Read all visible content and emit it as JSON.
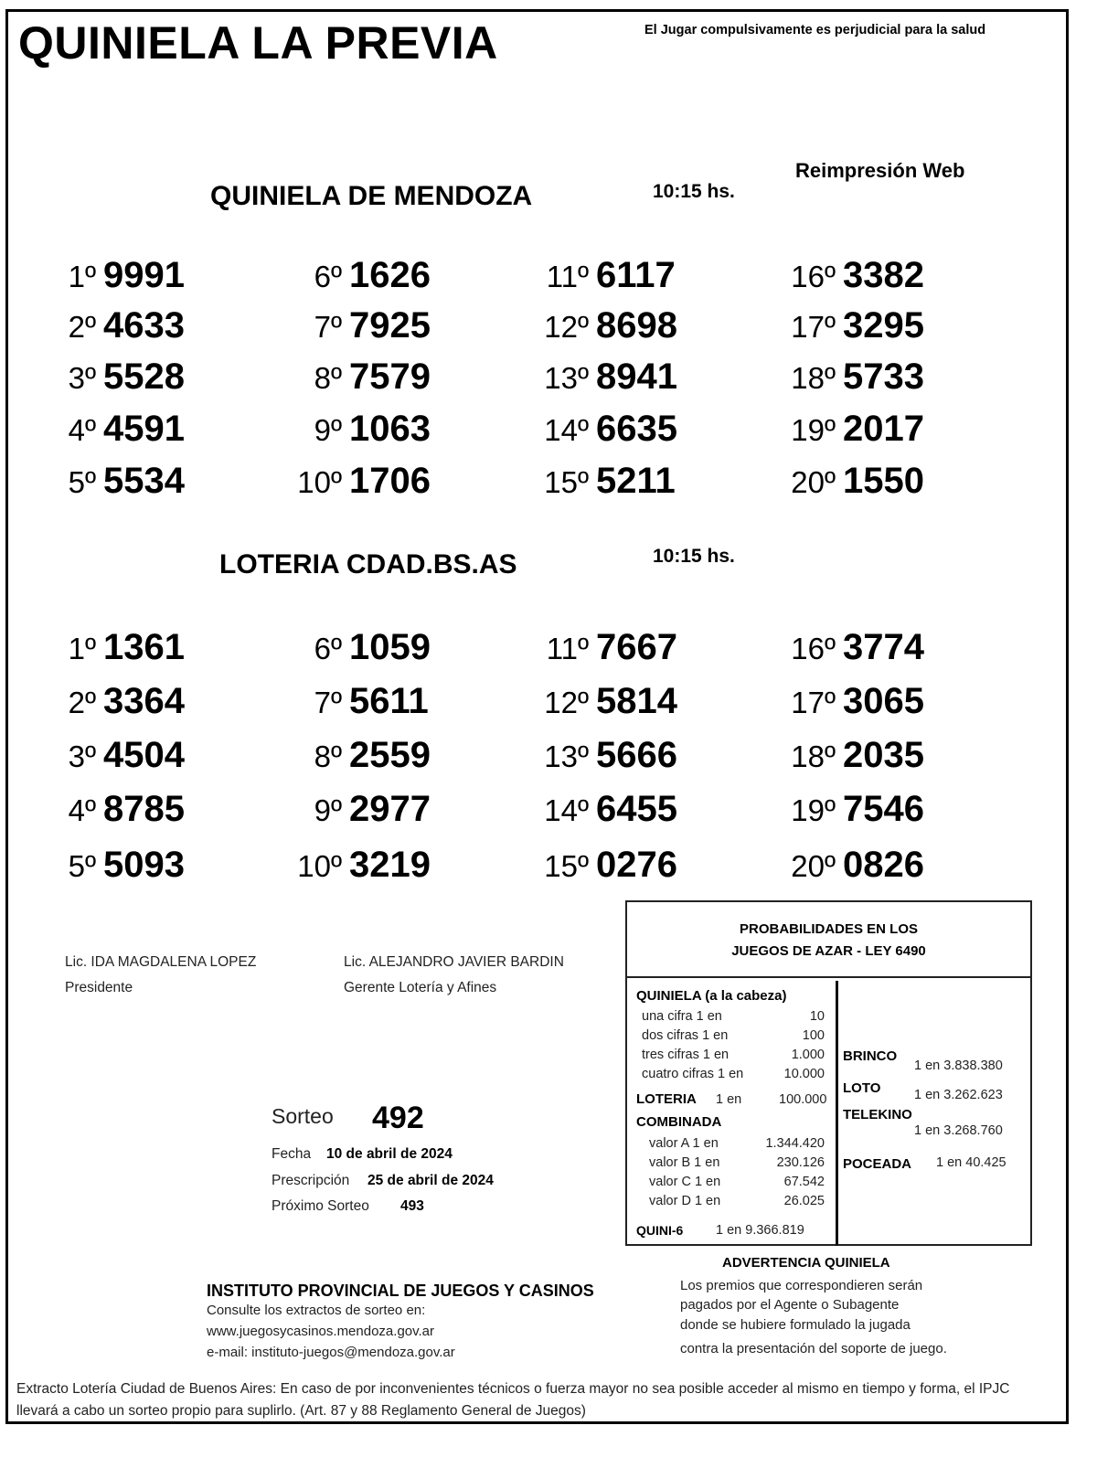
{
  "header": {
    "title": "QUINIELA LA PREVIA",
    "warning": "El Jugar compulsivamente es perjudicial para la salud",
    "reprint": "Reimpresión Web"
  },
  "sections": [
    {
      "name": "QUINIELA  DE MENDOZA",
      "time": "10:15 hs.",
      "results": [
        {
          "pos": "1º",
          "num": "9991"
        },
        {
          "pos": "2º",
          "num": "4633"
        },
        {
          "pos": "3º",
          "num": "5528"
        },
        {
          "pos": "4º",
          "num": "4591"
        },
        {
          "pos": "5º",
          "num": "5534"
        },
        {
          "pos": "6º",
          "num": "1626"
        },
        {
          "pos": "7º",
          "num": "7925"
        },
        {
          "pos": "8º",
          "num": "7579"
        },
        {
          "pos": "9º",
          "num": "1063"
        },
        {
          "pos": "10º",
          "num": "1706"
        },
        {
          "pos": "11º",
          "num": "6117"
        },
        {
          "pos": "12º",
          "num": "8698"
        },
        {
          "pos": "13º",
          "num": "8941"
        },
        {
          "pos": "14º",
          "num": "6635"
        },
        {
          "pos": "15º",
          "num": "5211"
        },
        {
          "pos": "16º",
          "num": "3382"
        },
        {
          "pos": "17º",
          "num": "3295"
        },
        {
          "pos": "18º",
          "num": "5733"
        },
        {
          "pos": "19º",
          "num": "2017"
        },
        {
          "pos": "20º",
          "num": "1550"
        }
      ]
    },
    {
      "name": "LOTERIA CDAD.BS.AS",
      "time": "10:15 hs.",
      "results": [
        {
          "pos": "1º",
          "num": "1361"
        },
        {
          "pos": "2º",
          "num": "3364"
        },
        {
          "pos": "3º",
          "num": "4504"
        },
        {
          "pos": "4º",
          "num": "8785"
        },
        {
          "pos": "5º",
          "num": "5093"
        },
        {
          "pos": "6º",
          "num": "1059"
        },
        {
          "pos": "7º",
          "num": "5611"
        },
        {
          "pos": "8º",
          "num": "2559"
        },
        {
          "pos": "9º",
          "num": "2977"
        },
        {
          "pos": "10º",
          "num": "3219"
        },
        {
          "pos": "11º",
          "num": "7667"
        },
        {
          "pos": "12º",
          "num": "5814"
        },
        {
          "pos": "13º",
          "num": "5666"
        },
        {
          "pos": "14º",
          "num": "6455"
        },
        {
          "pos": "15º",
          "num": "0276"
        },
        {
          "pos": "16º",
          "num": "3774"
        },
        {
          "pos": "17º",
          "num": "3065"
        },
        {
          "pos": "18º",
          "num": "2035"
        },
        {
          "pos": "19º",
          "num": "7546"
        },
        {
          "pos": "20º",
          "num": "0826"
        }
      ]
    }
  ],
  "signatures": [
    {
      "name": "Lic. IDA MAGDALENA LOPEZ",
      "role": "Presidente"
    },
    {
      "name": "Lic. ALEJANDRO JAVIER BARDIN",
      "role": "Gerente Lotería y Afines"
    }
  ],
  "draw_info": {
    "sorteo_label": "Sorteo",
    "sorteo": "492",
    "fecha_label": "Fecha",
    "fecha": "10 de abril de 2024",
    "prescripcion_label": "Prescripción",
    "prescripcion": "25 de abril de 2024",
    "proximo_label": "Próximo Sorteo",
    "proximo": "493"
  },
  "probabilities": {
    "title1": "PROBABILIDADES EN LOS",
    "title2": "JUEGOS DE AZAR - LEY 6490",
    "quiniela": "QUINIELA (a la cabeza)",
    "quiniela_rows": [
      {
        "label": "una cifra  1 en",
        "value": "10"
      },
      {
        "label": "dos cifras 1 en",
        "value": "100"
      },
      {
        "label": "tres cifras 1 en",
        "value": "1.000"
      },
      {
        "label": "cuatro cifras 1 en",
        "value": "10.000"
      }
    ],
    "loteria": "LOTERIA",
    "loteria_en": "1 en",
    "loteria_value": "100.000",
    "combinada": "COMBINADA",
    "combinada_rows": [
      {
        "label": "valor A 1 en",
        "value": "1.344.420"
      },
      {
        "label": "valor B 1 en",
        "value": "230.126"
      },
      {
        "label": "valor C 1 en",
        "value": "67.542"
      },
      {
        "label": "valor D 1 en",
        "value": "26.025"
      }
    ],
    "quini6": "QUINI-6",
    "quini6_value": "1 en  9.366.819",
    "brinco": "BRINCO",
    "brinco_value": "1 en 3.838.380",
    "loto": "LOTO",
    "loto_value": "1 en 3.262.623",
    "telekino": "TELEKINO",
    "telekino_value": "1 en 3.268.760",
    "poceada": "POCEADA",
    "poceada_value": "1 en 40.425"
  },
  "advertencia": {
    "title": "ADVERTENCIA QUINIELA",
    "lines": [
      "Los premios que correspondieren serán",
      "pagados por el Agente o Subagente",
      "donde se hubiere formulado la jugada",
      "contra la presentación del soporte de juego."
    ]
  },
  "institute": {
    "name": "INSTITUTO PROVINCIAL DE JUEGOS Y CASINOS",
    "consult": "Consulte los extractos de sorteo en:",
    "web": "www.juegosycasinos.mendoza.gov.ar",
    "email": "e-mail:  instituto-juegos@mendoza.gov.ar"
  },
  "footer": "Extracto Lotería Ciudad de Buenos Aires: En caso de por inconvenientes técnicos o fuerza mayor no sea posible acceder al mismo en tiempo y forma, el IPJC llevará a cabo un sorteo propio para suplirlo. (Art. 87 y 88 Reglamento General de Juegos)"
}
